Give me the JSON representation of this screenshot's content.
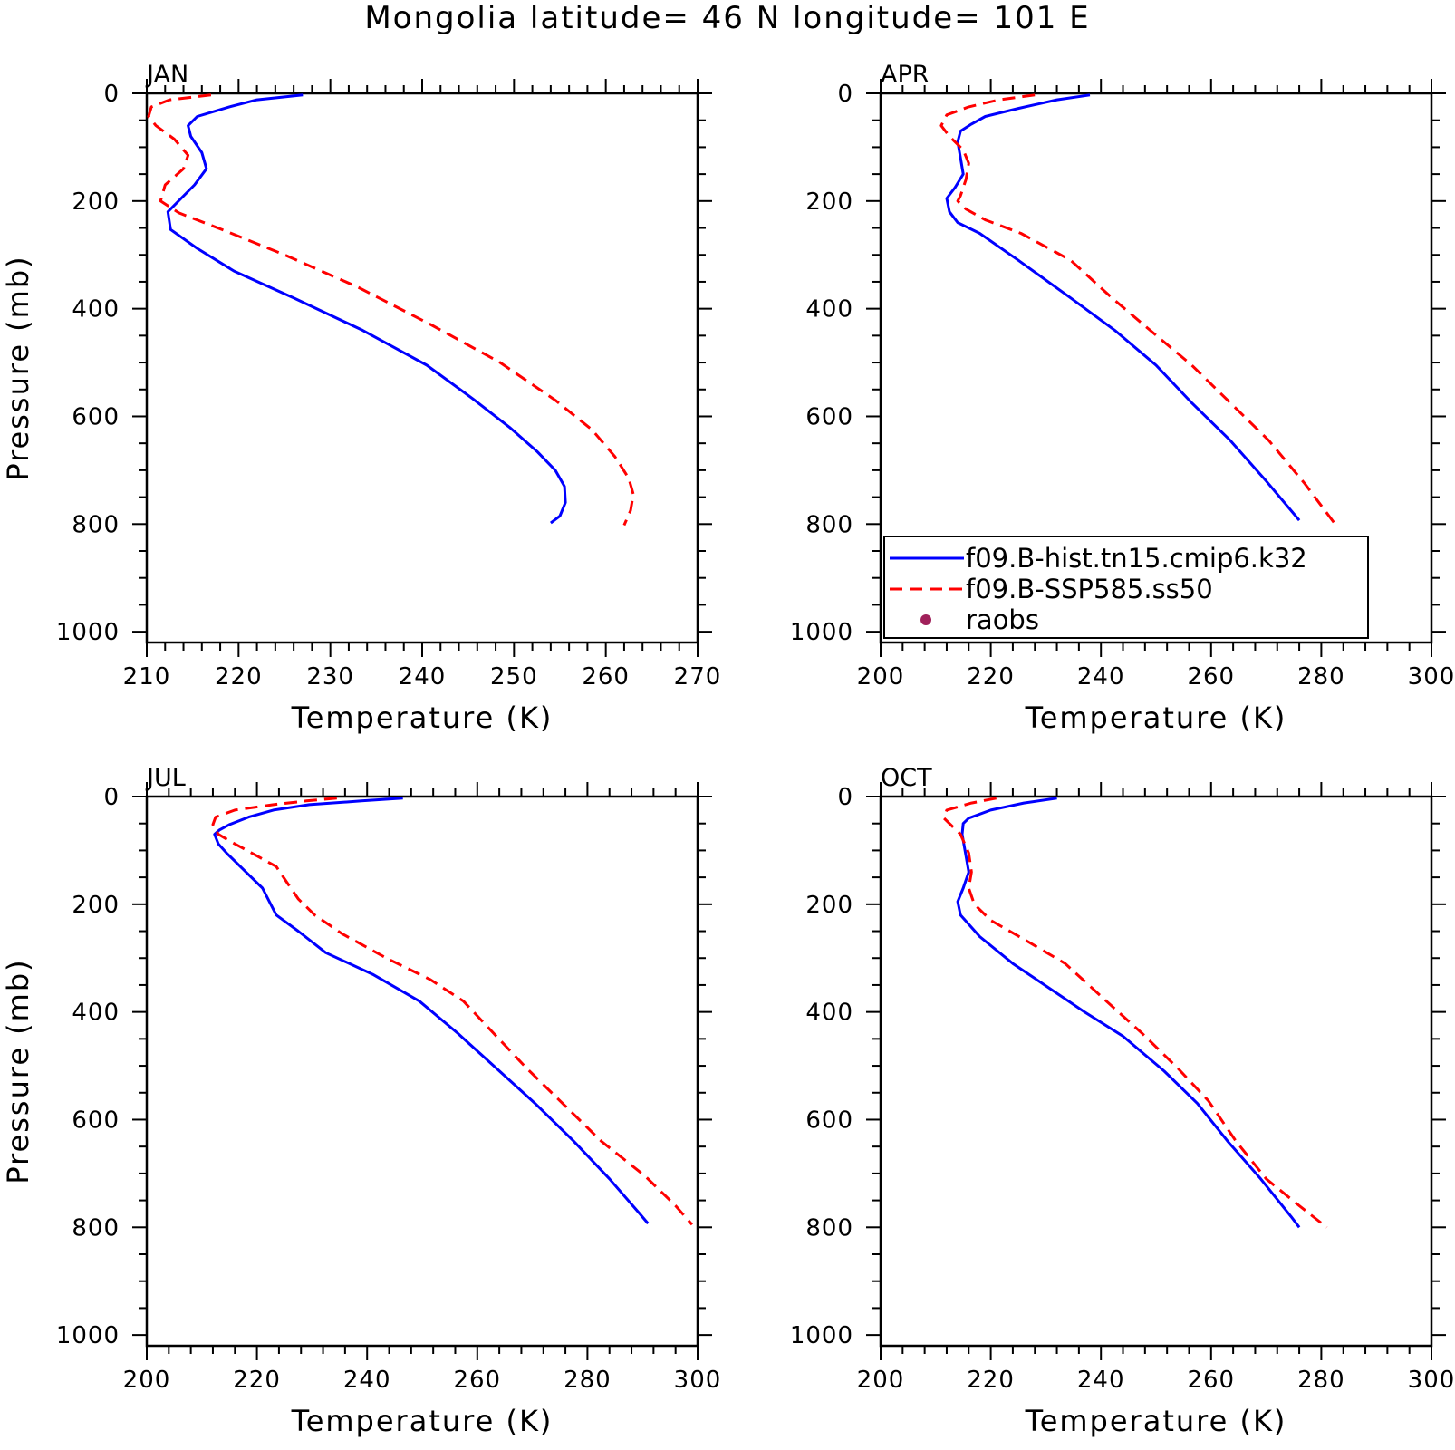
{
  "chart_data": {
    "title": "Mongolia  latitude= 46 N longitude= 101 E",
    "type": "line",
    "legend": {
      "placement": "lower-left of APR panel",
      "entries": [
        {
          "name": "f09.B-hist.tn15.cmip6.k32",
          "style": "solid",
          "color": "#0000ff"
        },
        {
          "name": "f09.B-SSP585.ss50",
          "style": "dashed",
          "color": "#ff0000"
        },
        {
          "name": "raobs",
          "style": "marker",
          "color": "#a0205a"
        }
      ]
    },
    "panels": [
      {
        "label": "JAN",
        "xlabel": "Temperature (K)",
        "ylabel": "Pressure (mb)",
        "xlim": [
          210,
          270
        ],
        "ylim": [
          1020,
          0
        ],
        "xticks": [
          210,
          220,
          230,
          240,
          250,
          260,
          270
        ],
        "yticks": [
          0,
          200,
          400,
          600,
          800,
          1000
        ],
        "grid": false,
        "series": [
          {
            "name": "f09.B-hist.tn15.cmip6.k32",
            "temperature": [
              227.0,
              222.0,
              219.0,
              215.5,
              214.5,
              214.8,
              216.0,
              216.5,
              215.2,
              212.3,
              212.6,
              215.5,
              219.5,
              226.0,
              233.5,
              240.5,
              245.5,
              249.5,
              252.5,
              254.5,
              255.5,
              255.6,
              255.0,
              254.0
            ],
            "pressure": [
              3,
              12,
              25,
              43,
              60,
              80,
              110,
              140,
              170,
              220,
              253,
              288,
              330,
              380,
              440,
              505,
              567,
              620,
              665,
              700,
              730,
              760,
              785,
              798
            ]
          },
          {
            "name": "f09.B-SSP585.ss50",
            "temperature": [
              217.0,
              212.5,
              210.5,
              210.2,
              211.0,
              213.0,
              214.5,
              214.0,
              212.0,
              211.5,
              213.5,
              218.5,
              225.0,
              233.0,
              241.0,
              248.5,
              254.5,
              258.5,
              261.0,
              262.5,
              263.0,
              262.7,
              262.0
            ],
            "pressure": [
              3,
              12,
              25,
              43,
              60,
              85,
              115,
              140,
              170,
              200,
              222,
              255,
              300,
              360,
              430,
              500,
              570,
              625,
              675,
              715,
              745,
              775,
              802
            ]
          }
        ]
      },
      {
        "label": "APR",
        "xlabel": "Temperature (K)",
        "ylabel": "",
        "xlim": [
          200,
          300
        ],
        "ylim": [
          1020,
          0
        ],
        "xticks": [
          200,
          220,
          240,
          260,
          280,
          300
        ],
        "yticks": [
          0,
          200,
          400,
          600,
          800,
          1000
        ],
        "grid": false,
        "series": [
          {
            "name": "f09.B-hist.tn15.cmip6.k32",
            "temperature": [
              238.0,
              232.0,
              225.0,
              219.0,
              216.5,
              214.5,
              214.0,
              214.5,
              215.0,
              213.5,
              212.0,
              212.5,
              214.0,
              218.0,
              225.0,
              234.5,
              242.5,
              250.0,
              256.5,
              263.5,
              270.0,
              276.0
            ],
            "pressure": [
              3,
              12,
              28,
              43,
              57,
              70,
              90,
              120,
              150,
              175,
              195,
              220,
              240,
              260,
              310,
              380,
              440,
              505,
              575,
              645,
              720,
              793
            ]
          },
          {
            "name": "f09.B-SSP585.ss50",
            "temperature": [
              228.0,
              221.5,
              216.0,
              212.0,
              211.0,
              212.5,
              215.0,
              216.0,
              215.5,
              214.5,
              214.0,
              215.5,
              219.0,
              225.5,
              234.5,
              242.0,
              249.5,
              256.5,
              263.5,
              270.5,
              277.0,
              282.5
            ],
            "pressure": [
              3,
              12,
              25,
              40,
              60,
              80,
              105,
              130,
              160,
              190,
              200,
              215,
              235,
              260,
              310,
              380,
              445,
              505,
              575,
              645,
              725,
              800
            ]
          }
        ]
      },
      {
        "label": "JUL",
        "xlabel": "Temperature (K)",
        "ylabel": "Pressure (mb)",
        "xlim": [
          200,
          300
        ],
        "ylim": [
          1020,
          0
        ],
        "xticks": [
          200,
          220,
          240,
          260,
          280,
          300
        ],
        "yticks": [
          0,
          200,
          400,
          600,
          800,
          1000
        ],
        "grid": false,
        "series": [
          {
            "name": "f09.B-hist.tn15.cmip6.k32",
            "temperature": [
              246.5,
              239.0,
              229.5,
              223.0,
              218.5,
              215.0,
              213.2,
              212.3,
              213.0,
              214.5,
              218.0,
              221.0,
              223.5,
              227.5,
              232.5,
              241.0,
              249.5,
              256.5,
              263.5,
              270.5,
              277.5,
              284.0,
              289.5,
              291.0
            ],
            "pressure": [
              3,
              8,
              15,
              25,
              38,
              52,
              62,
              70,
              88,
              105,
              140,
              170,
              220,
              250,
              290,
              330,
              380,
              440,
              505,
              570,
              640,
              710,
              775,
              793
            ]
          },
          {
            "name": "f09.B-SSP585.ss50",
            "temperature": [
              234.5,
              229.0,
              223.0,
              216.0,
              212.5,
              212.0,
              213.0,
              215.5,
              220.0,
              223.5,
              225.5,
              227.5,
              230.5,
              235.5,
              243.5,
              251.5,
              257.5,
              263.0,
              269.0,
              275.5,
              282.5,
              290.5,
              296.0,
              299.0
            ],
            "pressure": [
              3,
              8,
              15,
              25,
              38,
              52,
              70,
              85,
              110,
              130,
              160,
              190,
              220,
              255,
              300,
              340,
              380,
              440,
              505,
              570,
              640,
              705,
              760,
              795
            ]
          }
        ]
      },
      {
        "label": "OCT",
        "xlabel": "Temperature (K)",
        "ylabel": "",
        "xlim": [
          200,
          300
        ],
        "ylim": [
          1020,
          0
        ],
        "xticks": [
          200,
          220,
          240,
          260,
          280,
          300
        ],
        "yticks": [
          0,
          200,
          400,
          600,
          800,
          1000
        ],
        "grid": false,
        "series": [
          {
            "name": "f09.B-hist.tn15.cmip6.k32",
            "temperature": [
              232.0,
              226.0,
              220.0,
              216.0,
              215.0,
              214.8,
              215.5,
              216.0,
              215.0,
              214.0,
              214.5,
              218.0,
              224.0,
              230.5,
              237.0,
              244.0,
              251.5,
              257.5,
              263.0,
              269.0,
              274.5,
              276.0
            ],
            "pressure": [
              3,
              12,
              25,
              40,
              50,
              70,
              110,
              140,
              170,
              195,
              220,
              260,
              310,
              355,
              400,
              445,
              510,
              570,
              640,
              710,
              780,
              800
            ]
          },
          {
            "name": "f09.B-SSP585.ss50",
            "temperature": [
              221.0,
              216.5,
              212.0,
              211.5,
              214.5,
              216.0,
              216.5,
              216.0,
              217.0,
              220.0,
              226.0,
              233.5,
              241.0,
              247.5,
              254.0,
              259.5,
              264.5,
              270.0,
              276.0,
              281.0
            ],
            "pressure": [
              3,
              12,
              25,
              40,
              70,
              105,
              140,
              170,
              200,
              230,
              265,
              310,
              380,
              440,
              505,
              565,
              640,
              710,
              760,
              800
            ]
          }
        ]
      }
    ]
  }
}
